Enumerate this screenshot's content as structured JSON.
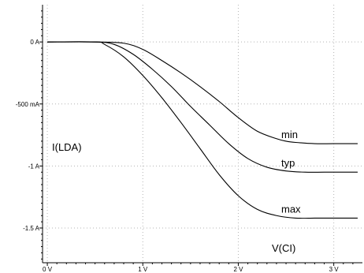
{
  "chart_data": {
    "type": "line",
    "title": "",
    "xlabel": "V(CI)",
    "ylabel": "I(LDA)",
    "xlim": [
      -0.05,
      3.3
    ],
    "ylim": [
      -1.78,
      0.3
    ],
    "grid": true,
    "x_ticks": [
      {
        "value": 0,
        "label": "0 V"
      },
      {
        "value": 1,
        "label": "1 V"
      },
      {
        "value": 2,
        "label": "2 V"
      },
      {
        "value": 3,
        "label": "3 V"
      }
    ],
    "y_ticks": [
      {
        "value": 0,
        "label": "0 A"
      },
      {
        "value": -0.5,
        "label": "-500 mA"
      },
      {
        "value": -1,
        "label": "-1 A"
      },
      {
        "value": -1.5,
        "label": "-1.5 A"
      }
    ],
    "series": [
      {
        "name": "min",
        "color": "#000000",
        "x": [
          0,
          0.5,
          0.8,
          1.0,
          1.2,
          1.4,
          1.6,
          1.8,
          2.0,
          2.2,
          2.4,
          2.5,
          2.6,
          2.8,
          3.0,
          3.25
        ],
        "y": [
          0,
          0,
          -0.01,
          -0.06,
          -0.15,
          -0.25,
          -0.36,
          -0.48,
          -0.61,
          -0.72,
          -0.78,
          -0.8,
          -0.81,
          -0.82,
          -0.82,
          -0.82
        ]
      },
      {
        "name": "typ",
        "color": "#000000",
        "x": [
          0,
          0.5,
          0.7,
          0.9,
          1.1,
          1.3,
          1.5,
          1.7,
          1.9,
          2.1,
          2.3,
          2.5,
          2.7,
          2.9,
          3.1,
          3.25
        ],
        "y": [
          0,
          0,
          -0.02,
          -0.1,
          -0.22,
          -0.36,
          -0.52,
          -0.67,
          -0.82,
          -0.94,
          -1.01,
          -1.04,
          -1.05,
          -1.05,
          -1.05,
          -1.05
        ]
      },
      {
        "name": "max",
        "color": "#000000",
        "x": [
          0,
          0.5,
          0.6,
          0.8,
          1.0,
          1.2,
          1.4,
          1.6,
          1.8,
          2.0,
          2.2,
          2.4,
          2.6,
          2.8,
          3.0,
          3.25
        ],
        "y": [
          0,
          0,
          -0.02,
          -0.12,
          -0.27,
          -0.45,
          -0.65,
          -0.86,
          -1.07,
          -1.24,
          -1.35,
          -1.4,
          -1.42,
          -1.42,
          -1.42,
          -1.42
        ]
      }
    ]
  }
}
